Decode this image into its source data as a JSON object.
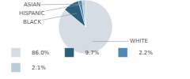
{
  "chart_data": {
    "type": "pie",
    "categories": [
      "WHITE",
      "BLACK",
      "HISPANIC",
      "ASIAN"
    ],
    "values": [
      86.0,
      9.7,
      2.2,
      2.1
    ],
    "colors": [
      "#d6dce4",
      "#2e5f7a",
      "#4a8ab5",
      "#b8cdd9"
    ],
    "value_labels": [
      "86.0%",
      "9.7%",
      "2.2%",
      "2.1%"
    ],
    "legend": "lower left"
  }
}
